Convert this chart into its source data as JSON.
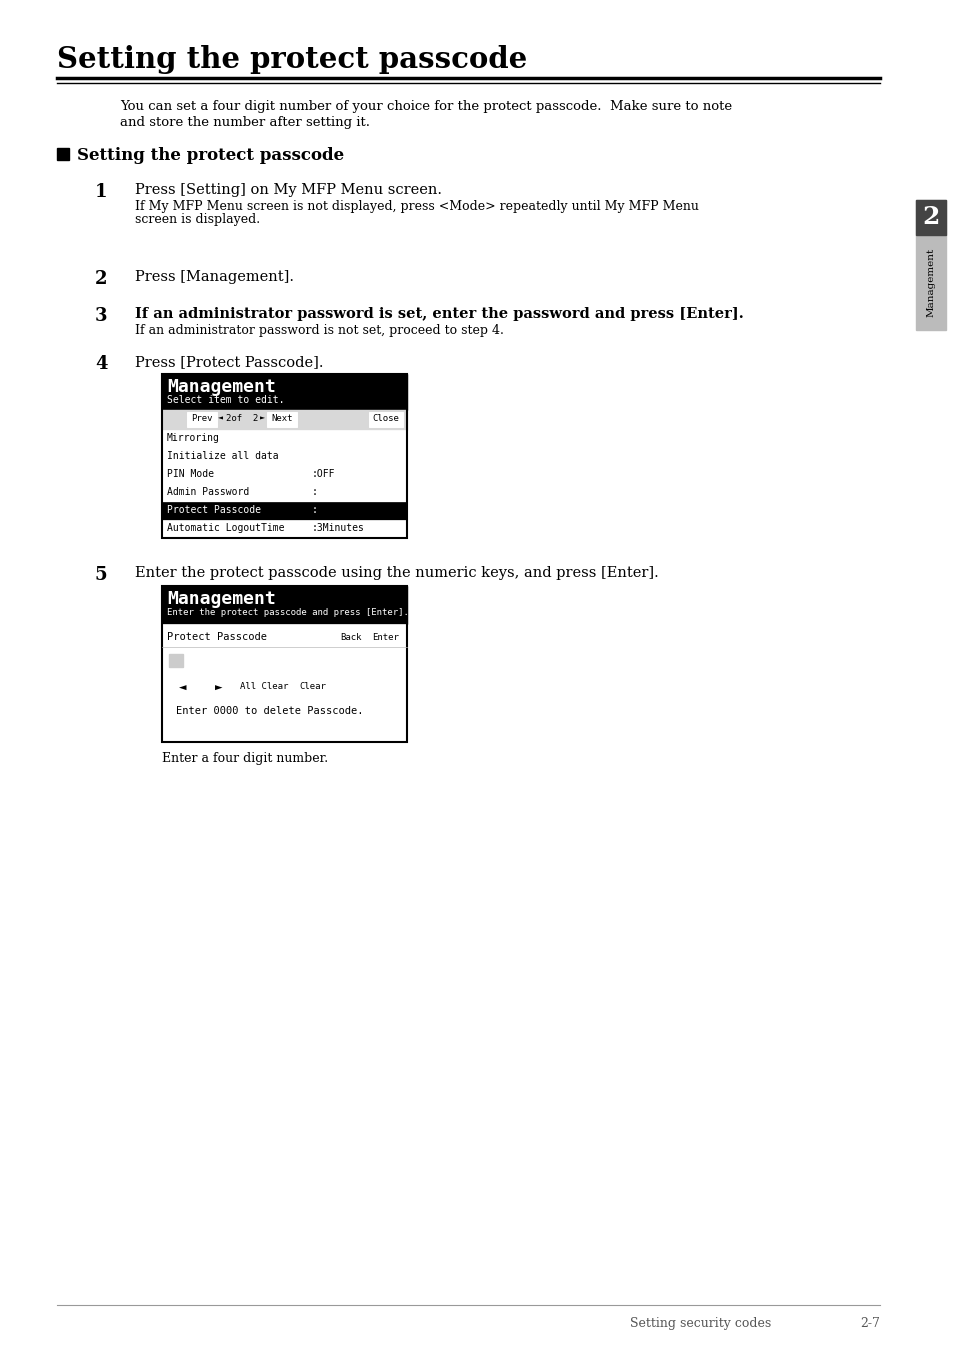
{
  "title": "Setting the protect passcode",
  "intro_text1": "You can set a four digit number of your choice for the protect passcode.  Make sure to note",
  "intro_text2": "and store the number after setting it.",
  "section_title": "Setting the protect passcode",
  "step1_main": "Press [Setting] on My MFP Menu screen.",
  "step1_sub1": "If My MFP Menu screen is not displayed, press <Mode> repeatedly until My MFP Menu",
  "step1_sub2": "screen is displayed.",
  "step2_main": "Press [Management].",
  "step3_main": "If an administrator password is set, enter the password and press [Enter].",
  "step3_sub": "If an administrator password is not set, proceed to step 4.",
  "step4_main": "Press [Protect Passcode].",
  "step5_main": "Enter the protect passcode using the numeric keys, and press [Enter].",
  "caption1": "Enter a four digit number.",
  "screen1_title": "Management",
  "screen1_sub": "Select item to edit.",
  "screen1_nav": "Prev ◄  2of  2 ► Next   Close",
  "screen1_rows": [
    {
      "label": "Mirroring",
      "value": "",
      "highlight": false
    },
    {
      "label": "Initialize all data",
      "value": "",
      "highlight": false
    },
    {
      "label": "PIN Mode",
      "value": ":OFF",
      "highlight": false
    },
    {
      "label": "Admin Password",
      "value": ":",
      "highlight": false
    },
    {
      "label": "Protect Passcode",
      "value": ":",
      "highlight": true
    },
    {
      "label": "Automatic LogoutTime",
      "value": ":3Minutes",
      "highlight": false
    }
  ],
  "screen2_title": "Management",
  "screen2_sub": "Enter the protect passcode and press [Enter].",
  "screen2_label": "Protect Passcode",
  "screen2_hint": "Enter 0000 to delete Passcode.",
  "sidebar_num": "2",
  "sidebar_text": "Management",
  "footer_left": "Setting security codes",
  "footer_right": "2-7",
  "bg_color": "#ffffff"
}
